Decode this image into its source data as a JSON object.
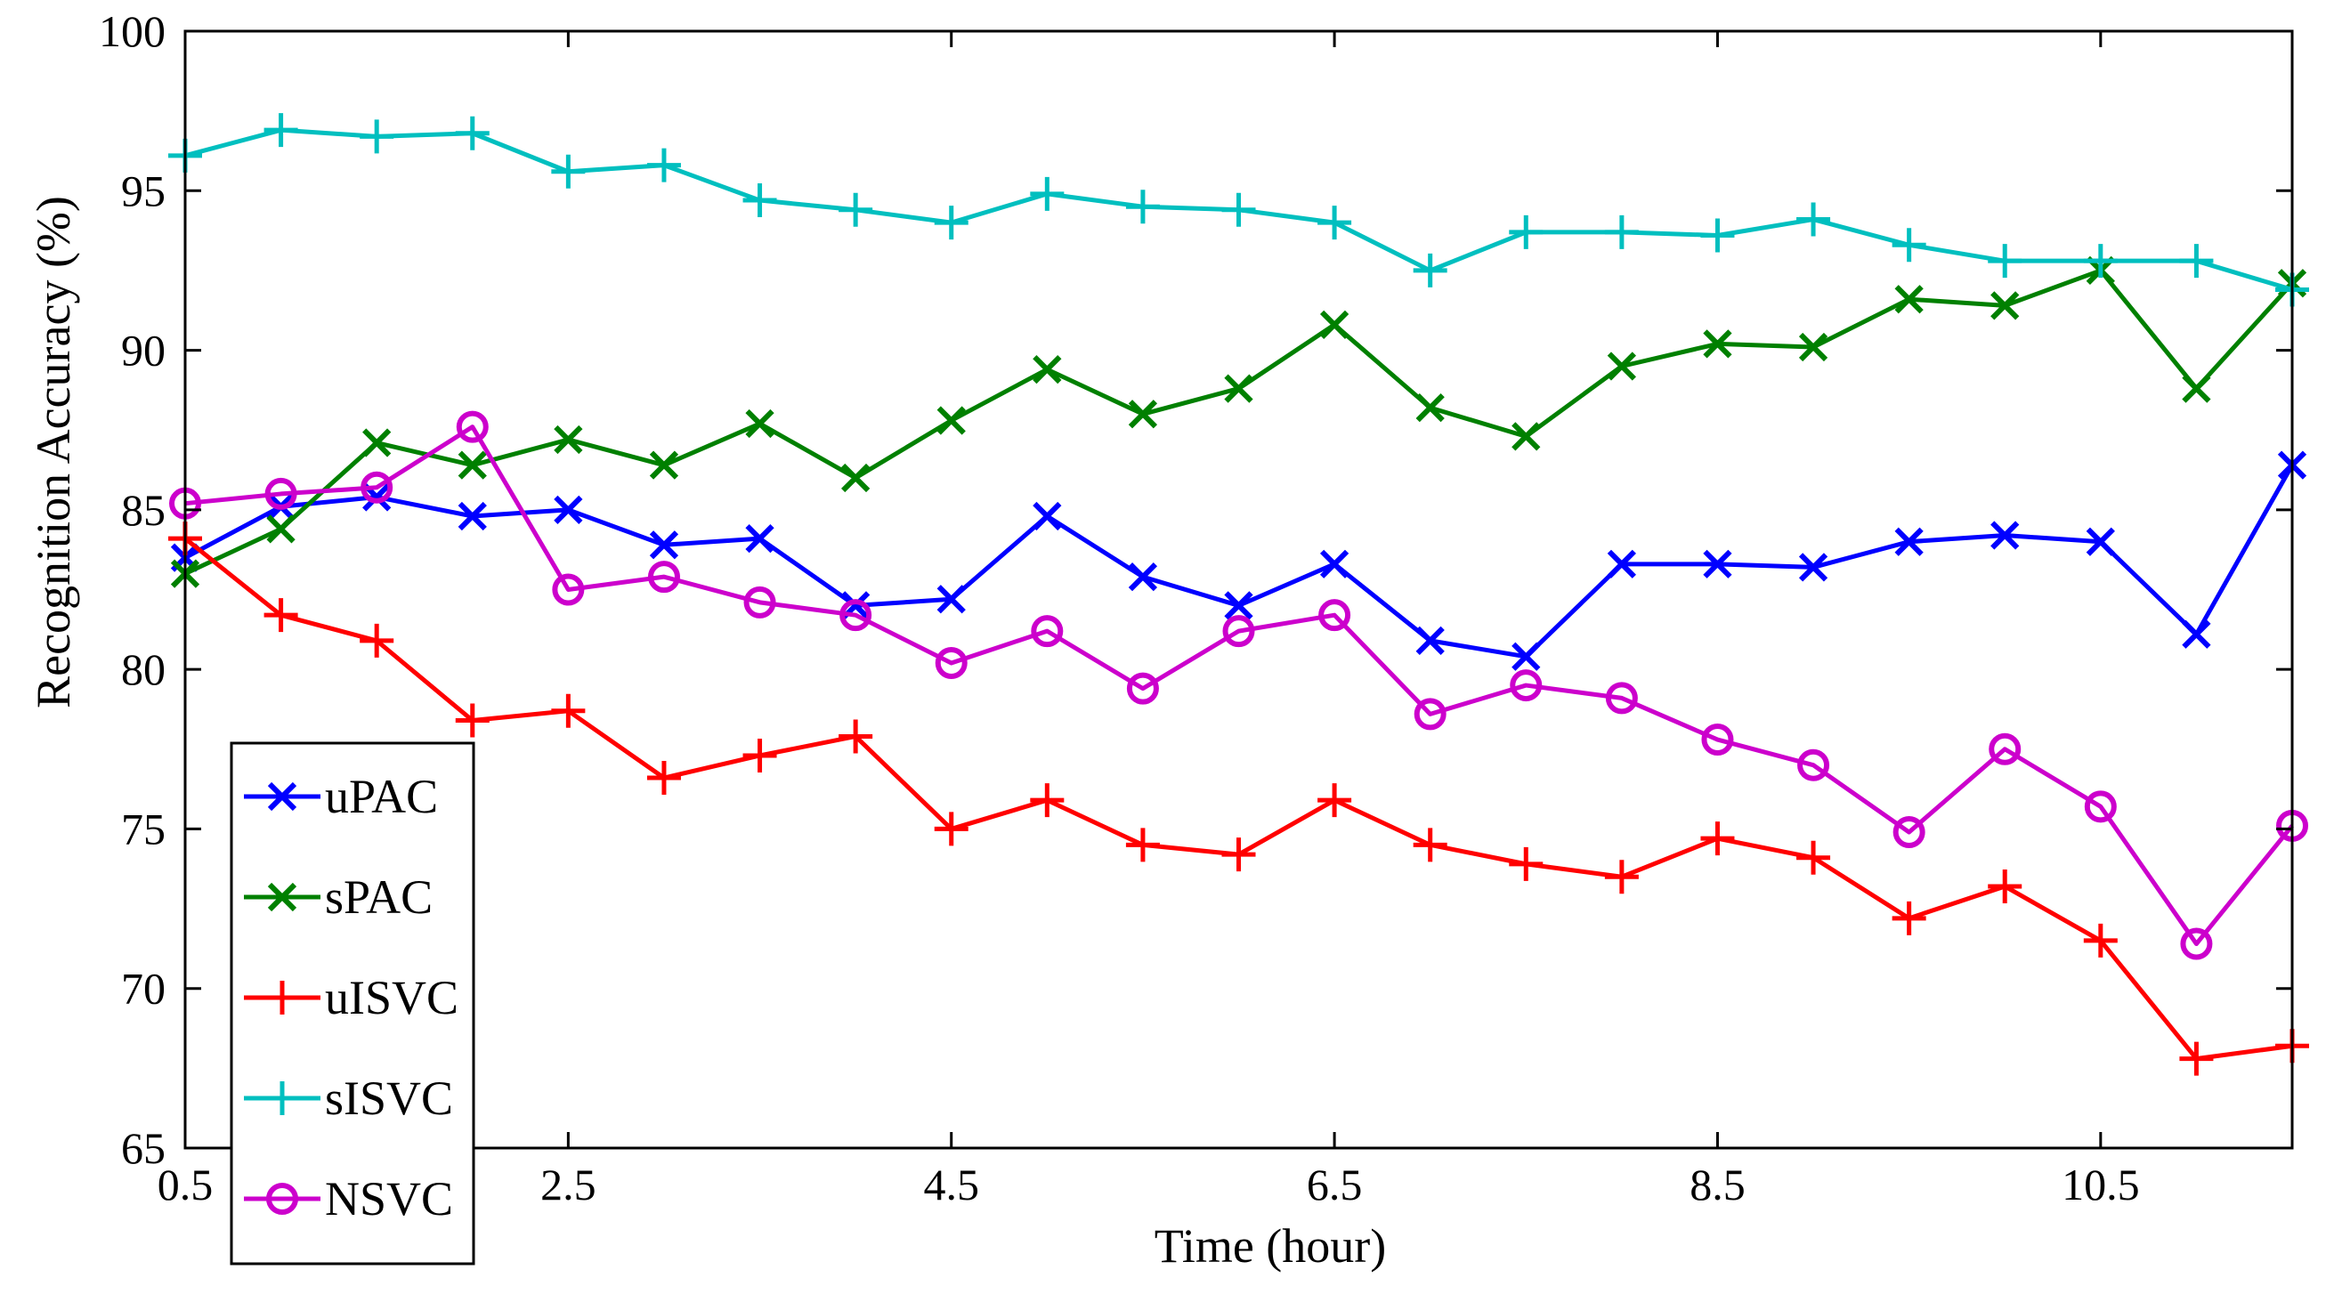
{
  "chart_data": {
    "type": "line",
    "title": "",
    "xlabel": "Time (hour)",
    "ylabel": "Recognition Accuracy (%)",
    "xlim": [
      0.5,
      11.5
    ],
    "ylim": [
      65,
      100
    ],
    "x_ticks": [
      "0.5",
      "2.5",
      "4.5",
      "6.5",
      "8.5",
      "10.5"
    ],
    "y_ticks": [
      "65",
      "70",
      "75",
      "80",
      "85",
      "90",
      "95",
      "100"
    ],
    "legend_position": "bottom-left",
    "x": [
      0.5,
      1.0,
      1.5,
      2.0,
      2.5,
      3.0,
      3.5,
      4.0,
      4.5,
      5.0,
      5.5,
      6.0,
      6.5,
      7.0,
      7.5,
      8.0,
      8.5,
      9.0,
      9.5,
      10.0,
      10.5,
      11.0,
      11.5
    ],
    "series": [
      {
        "name": "uPAC",
        "color": "#0000ff",
        "marker": "x",
        "values": [
          83.5,
          85.1,
          85.4,
          84.8,
          85.0,
          83.9,
          84.1,
          82.0,
          82.2,
          84.8,
          82.9,
          82.0,
          83.3,
          80.9,
          80.4,
          83.3,
          83.3,
          83.2,
          84.0,
          84.2,
          84.0,
          81.1,
          86.4
        ]
      },
      {
        "name": "sPAC",
        "color": "#008000",
        "marker": "x",
        "values": [
          83.0,
          84.4,
          87.1,
          86.4,
          87.2,
          86.4,
          87.7,
          86.0,
          87.8,
          89.4,
          88.0,
          88.8,
          90.8,
          88.2,
          87.3,
          89.5,
          90.2,
          90.1,
          91.6,
          91.4,
          92.5,
          88.8,
          92.1
        ]
      },
      {
        "name": "uISVC",
        "color": "#ff0000",
        "marker": "+",
        "values": [
          84.1,
          81.7,
          80.9,
          78.4,
          78.7,
          76.6,
          77.3,
          77.9,
          75.0,
          75.9,
          74.5,
          74.2,
          75.9,
          74.5,
          73.9,
          73.5,
          74.7,
          74.1,
          72.2,
          73.2,
          71.5,
          67.8,
          68.2
        ]
      },
      {
        "name": "sISVC",
        "color": "#00bfbf",
        "marker": "+",
        "values": [
          96.1,
          96.9,
          96.7,
          96.8,
          95.6,
          95.8,
          94.7,
          94.4,
          94.0,
          94.9,
          94.5,
          94.4,
          94.0,
          92.5,
          93.7,
          93.7,
          93.6,
          94.1,
          93.3,
          92.8,
          92.8,
          92.8,
          91.9
        ]
      },
      {
        "name": "NSVC",
        "color": "#cc00cc",
        "marker": "o",
        "values": [
          85.2,
          85.5,
          85.7,
          87.6,
          82.5,
          82.9,
          82.1,
          81.7,
          80.2,
          81.2,
          79.4,
          81.2,
          81.7,
          78.6,
          79.5,
          79.1,
          77.8,
          77.0,
          74.9,
          77.5,
          75.7,
          71.4,
          75.1
        ]
      }
    ]
  }
}
